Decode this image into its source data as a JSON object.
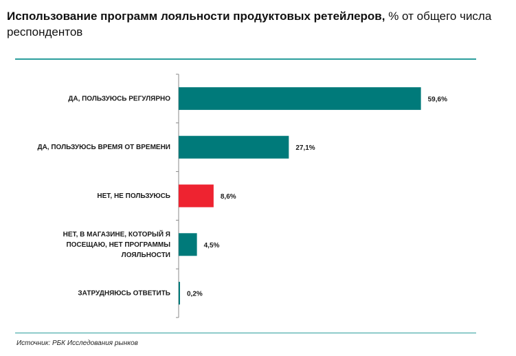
{
  "title": {
    "bold": "Использование программ лояльности продуктовых ретейлеров,",
    "normal": " % от общего числа респондентов"
  },
  "source": "Источник: РБК Исследования рынков",
  "colors": {
    "teal": "#007a7a",
    "red": "#ee2330",
    "rule": "#2a9d9c",
    "axis": "#888888"
  },
  "chart_data": {
    "type": "bar",
    "orientation": "horizontal",
    "categories": [
      [
        "ДА, ПОЛЬЗУЮСЬ РЕГУЛЯРНО"
      ],
      [
        "ДА, ПОЛЬЗУЮСЬ ВРЕМЯ ОТ ВРЕМЕНИ"
      ],
      [
        "НЕТ, НЕ ПОЛЬЗУЮСЬ"
      ],
      [
        "НЕТ, В МАГАЗИНЕ, КОТОРЫЙ Я",
        "ПОСЕЩАЮ, НЕТ ПРОГРАММЫ",
        "ЛОЯЛЬНОСТИ"
      ],
      [
        "ЗАТРУДНЯЮСЬ ОТВЕТИТЬ"
      ]
    ],
    "values": [
      59.6,
      27.1,
      8.6,
      4.5,
      0.2
    ],
    "labels": [
      "59,6%",
      "27,1%",
      "8,6%",
      "4,5%",
      "0,2%"
    ],
    "bar_colors": [
      "#007a7a",
      "#007a7a",
      "#ee2330",
      "#007a7a",
      "#007a7a"
    ],
    "xlim": [
      0,
      60
    ],
    "grid": false
  }
}
